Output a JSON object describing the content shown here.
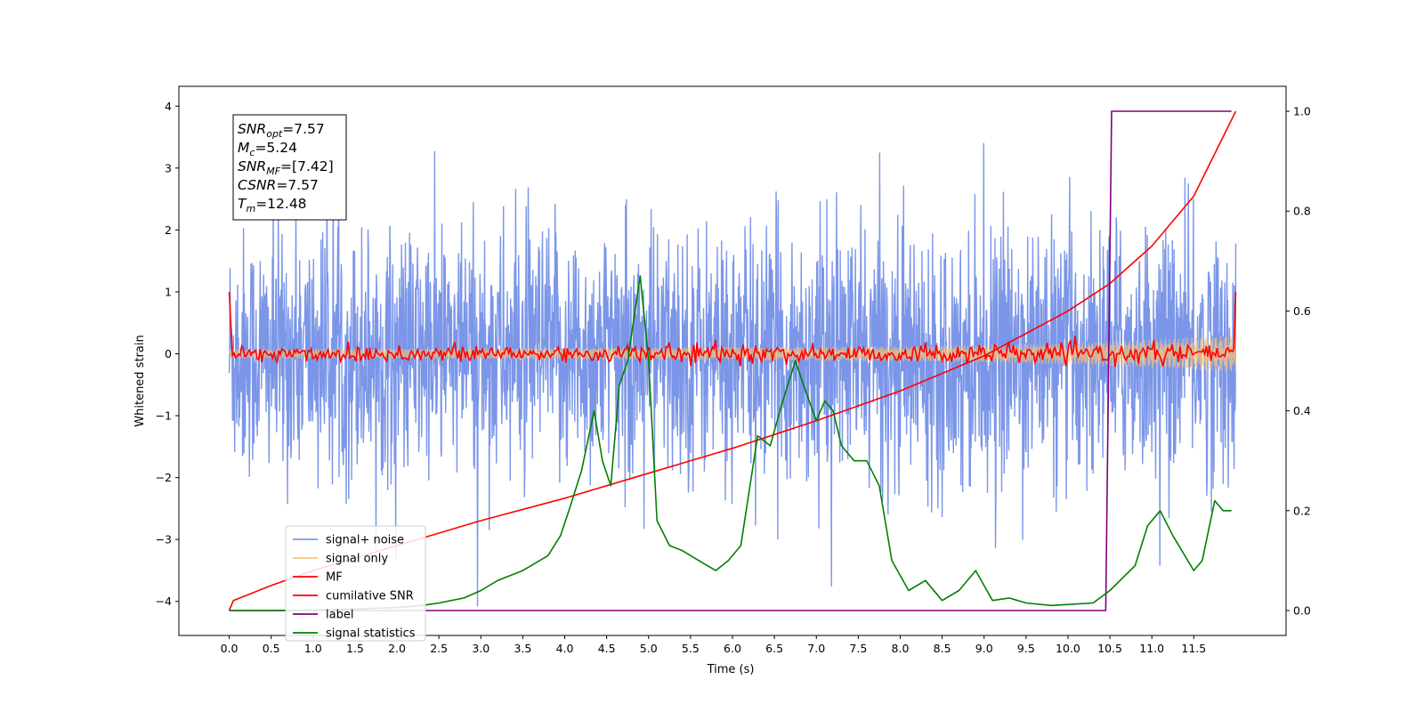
{
  "chart_data": {
    "type": "line",
    "title": "",
    "xlabel": "Time (s)",
    "ylabel": "Whitened strain",
    "xlim": [
      -0.6,
      12.6
    ],
    "ylim": [
      -4.55,
      4.32
    ],
    "y2lim": [
      -0.05,
      1.05
    ],
    "x_ticks": [
      "0.0",
      "0.5",
      "1.0",
      "1.5",
      "2.0",
      "2.5",
      "3.0",
      "3.5",
      "4.0",
      "4.5",
      "5.0",
      "5.5",
      "6.0",
      "6.5",
      "7.0",
      "7.5",
      "8.0",
      "8.5",
      "9.0",
      "9.5",
      "10.0",
      "10.5",
      "11.0",
      "11.5"
    ],
    "y_ticks": [
      "4",
      "3",
      "2",
      "1",
      "0",
      "−1",
      "−2",
      "−3",
      "−4"
    ],
    "y2_ticks": [
      "1.0",
      "0.8",
      "0.6",
      "0.4",
      "0.2",
      "0.0"
    ],
    "grid": false,
    "legend_position": "lower-left",
    "annotation": {
      "lines": [
        {
          "sym": "SNR",
          "sub": "opt",
          "value": "=7.57"
        },
        {
          "sym": "M",
          "sub": "c",
          "value": "=5.24"
        },
        {
          "sym": "SNR",
          "sub": "MF",
          "value": "=[7.42]"
        },
        {
          "sym": "CSNR",
          "sub": "",
          "value": "=7.57"
        },
        {
          "sym": "T",
          "sub": "m",
          "value": "=12.48"
        }
      ]
    },
    "series": [
      {
        "name": "signal+ noise",
        "color": "#7b96e8",
        "axis": "left",
        "description_values": {
          "x_start": 0.0,
          "x_end": 12.0,
          "noise_sigma": 1.0
        }
      },
      {
        "name": "signal only",
        "color": "#f5c27a",
        "axis": "left",
        "envelope": {
          "x": [
            0,
            4,
            8,
            10,
            11,
            12
          ],
          "amplitude": [
            0.07,
            0.09,
            0.12,
            0.17,
            0.22,
            0.3
          ]
        }
      },
      {
        "name": "MF",
        "color": "#ff0000",
        "axis": "left",
        "endpoints": {
          "x0": 0.0,
          "y0": 1.0,
          "x1": 12.0,
          "y1": 1.0
        }
      },
      {
        "name": "cumilative SNR",
        "color": "#ff0000",
        "axis": "right",
        "x": [
          0,
          0.05,
          0.5,
          1,
          2,
          3,
          4,
          5,
          6,
          7,
          8,
          9,
          10,
          10.5,
          11,
          11.5,
          12
        ],
        "y": [
          0,
          0.02,
          0.05,
          0.08,
          0.13,
          0.18,
          0.225,
          0.275,
          0.325,
          0.38,
          0.44,
          0.51,
          0.6,
          0.655,
          0.73,
          0.83,
          1.0
        ]
      },
      {
        "name": "label",
        "color": "#800080",
        "axis": "right",
        "x": [
          0,
          10.45,
          10.52,
          11.95
        ],
        "y": [
          0,
          0,
          1,
          1
        ]
      },
      {
        "name": "signal statistics",
        "color": "#008000",
        "axis": "right",
        "x": [
          0,
          0.5,
          1,
          1.5,
          2,
          2.3,
          2.5,
          2.8,
          3,
          3.2,
          3.5,
          3.8,
          3.95,
          4.05,
          4.2,
          4.35,
          4.45,
          4.55,
          4.65,
          4.75,
          4.9,
          5.0,
          5.1,
          5.25,
          5.4,
          5.6,
          5.8,
          5.95,
          6.1,
          6.3,
          6.45,
          6.6,
          6.75,
          6.85,
          7.0,
          7.1,
          7.2,
          7.3,
          7.45,
          7.6,
          7.75,
          7.9,
          8.1,
          8.3,
          8.5,
          8.7,
          8.9,
          9.1,
          9.3,
          9.5,
          9.8,
          10.0,
          10.3,
          10.5,
          10.8,
          10.95,
          11.1,
          11.25,
          11.5,
          11.6,
          11.75,
          11.85,
          11.95
        ],
        "y": [
          0,
          0,
          0.001,
          0.003,
          0.006,
          0.01,
          0.015,
          0.025,
          0.04,
          0.06,
          0.08,
          0.11,
          0.15,
          0.2,
          0.28,
          0.4,
          0.3,
          0.25,
          0.45,
          0.5,
          0.67,
          0.5,
          0.18,
          0.13,
          0.12,
          0.1,
          0.08,
          0.1,
          0.13,
          0.35,
          0.33,
          0.42,
          0.5,
          0.45,
          0.38,
          0.42,
          0.4,
          0.33,
          0.3,
          0.3,
          0.25,
          0.1,
          0.04,
          0.06,
          0.02,
          0.04,
          0.08,
          0.02,
          0.025,
          0.015,
          0.01,
          0.012,
          0.015,
          0.04,
          0.09,
          0.17,
          0.2,
          0.15,
          0.08,
          0.1,
          0.22,
          0.2,
          0.2
        ]
      }
    ]
  }
}
